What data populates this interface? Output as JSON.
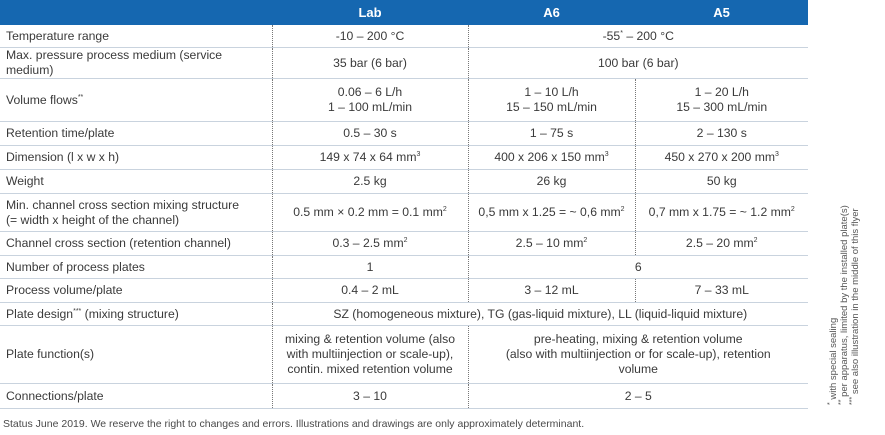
{
  "header": {
    "col_lab": "Lab",
    "col_a6": "A6",
    "col_a5": "A5"
  },
  "rows": {
    "temp": {
      "label": "Temperature range",
      "lab": "-10 – 200 °C",
      "a6a5": "-55",
      "a6a5_sup": "*",
      "a6a5_rest": " – 200 °C"
    },
    "pressure": {
      "label": "Max. pressure process medium (service medium)",
      "lab": "35 bar (6 bar)",
      "a6a5": "100 bar (6 bar)"
    },
    "volume": {
      "label": "Volume flows",
      "label_sup": "**",
      "lab_1": "0.06 – 6 L/h",
      "lab_2": "1 – 100 mL/min",
      "a6_1": "1 – 10 L/h",
      "a6_2": "15 – 150 mL/min",
      "a5_1": "1 – 20 L/h",
      "a5_2": "15 – 300 mL/min"
    },
    "retention": {
      "label": "Retention time/plate",
      "lab": "0.5 – 30 s",
      "a6": "1 – 75 s",
      "a5": "2 – 130 s"
    },
    "dimension": {
      "label": "Dimension (l x w x h)",
      "lab": "149 x 74 x 64 mm",
      "lab_sup": "3",
      "a6": "400 x 206 x 150 mm",
      "a6_sup": "3",
      "a5": "450 x 270 x 200 mm",
      "a5_sup": "3"
    },
    "weight": {
      "label": "Weight",
      "lab": "2.5 kg",
      "a6": "26 kg",
      "a5": "50 kg"
    },
    "mixing": {
      "label_1": "Min. channel cross section mixing structure",
      "label_2": "(= width x height of the channel)",
      "lab": "0.5 mm × 0.2 mm = 0.1 mm",
      "lab_sup": "2",
      "a6": "0,5 mm x 1.25 = ~ 0,6 mm",
      "a6_sup": "2",
      "a5": "0,7 mm x 1.75 = ~ 1.2 mm",
      "a5_sup": "2"
    },
    "channel": {
      "label": "Channel cross section (retention channel)",
      "lab": "0.3 – 2.5 mm",
      "lab_sup": "2",
      "a6": "2.5 – 10 mm",
      "a6_sup": "2",
      "a5": "2.5 – 20 mm",
      "a5_sup": "2"
    },
    "plates": {
      "label": "Number of process plates",
      "lab": "1",
      "a6a5": "6"
    },
    "process_volume": {
      "label": "Process volume/plate",
      "lab": "0.4 – 2 mL",
      "a6": "3 – 12 mL",
      "a5": "7 – 33 mL"
    },
    "plate_design": {
      "label": "Plate design",
      "label_sup": "***",
      "label_rest": " (mixing structure)",
      "value": "SZ (homogeneous mixture), TG (gas-liquid mixture), LL (liquid-liquid mixture)"
    },
    "plate_function": {
      "label": "Plate function(s)",
      "lab_1": "mixing & retention volume (also",
      "lab_2": "with multiinjection or scale-up),",
      "lab_3": "contin. mixed retention volume",
      "a6a5_1": "pre-heating, mixing & retention volume",
      "a6a5_2": "(also with multiinjection or for scale-up), retention",
      "a6a5_3": "volume"
    },
    "connections": {
      "label": "Connections/plate",
      "lab": "3 – 10",
      "a6a5": "2 – 5"
    }
  },
  "status": "Status June 2019. We reserve the right to changes and errors. Illustrations and drawings are only approximately determinant.",
  "footnotes": {
    "f1_mark": "*",
    "f1": "with special sealing",
    "f2_mark": "**",
    "f2": "per apparatus, limited by the installed plate(s)",
    "f3_mark": "***",
    "f3": "see also illustration in the middle of this flyer"
  }
}
